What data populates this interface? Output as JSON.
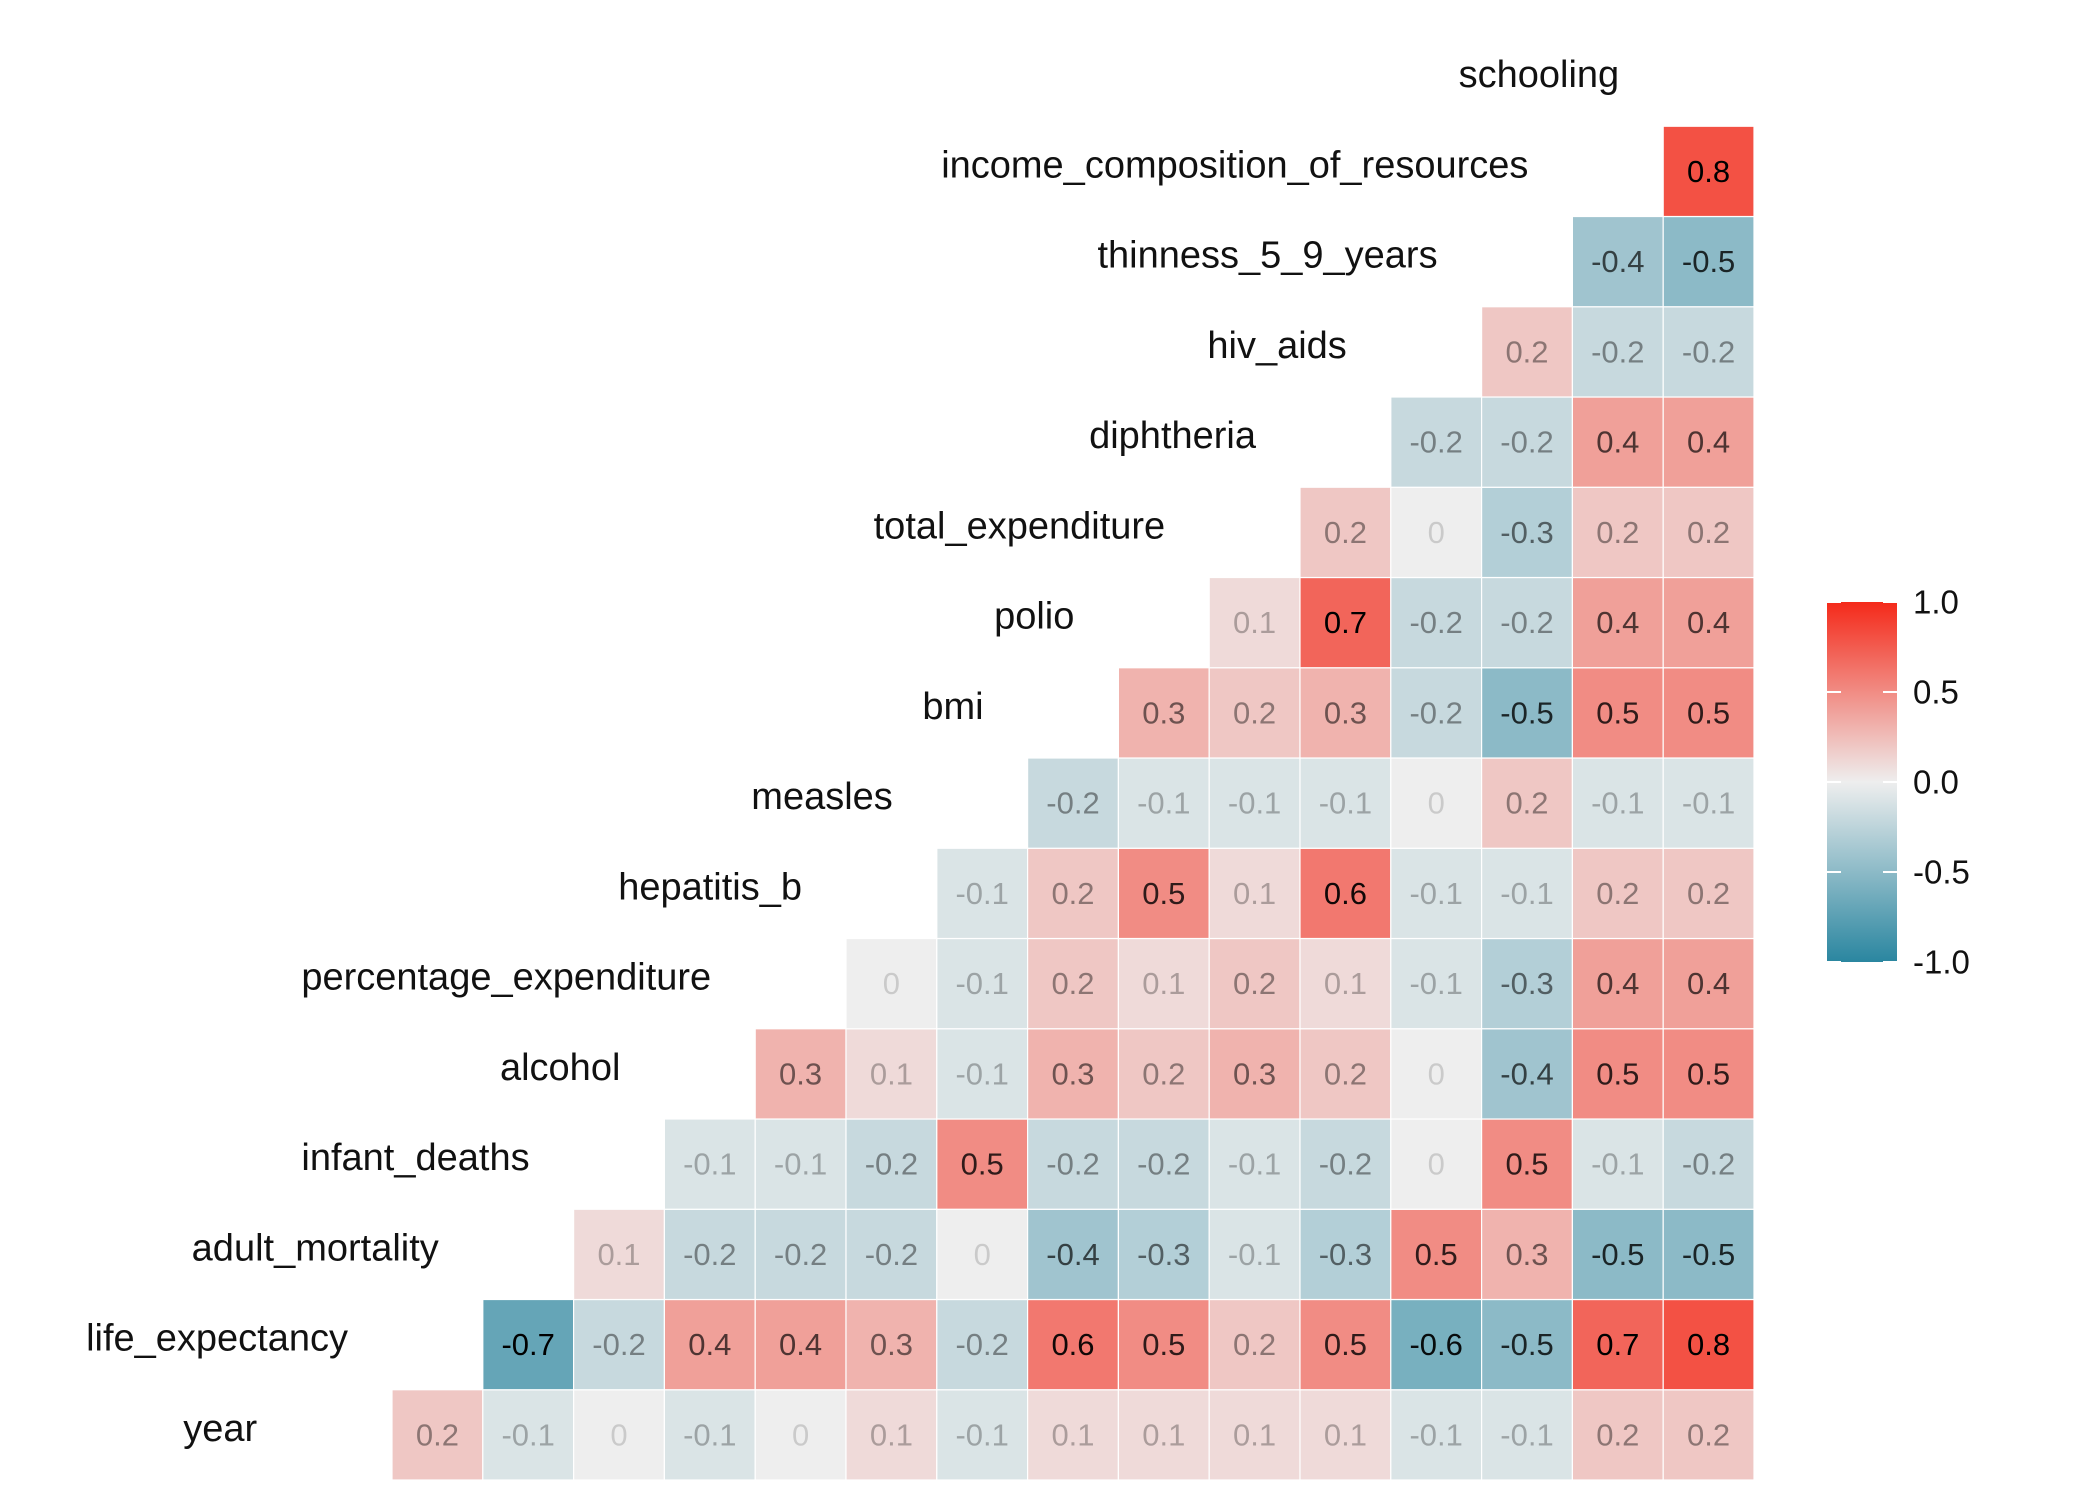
{
  "chart_data": {
    "type": "heatmap",
    "title": "",
    "variables": [
      "year",
      "life_expectancy",
      "adult_mortality",
      "infant_deaths",
      "alcohol",
      "percentage_expenditure",
      "hepatitis_b",
      "measles",
      "bmi",
      "polio",
      "total_expenditure",
      "diphtheria",
      "hiv_aids",
      "thinness_5_9_years",
      "income_composition_of_resources",
      "schooling"
    ],
    "matrix": [
      [
        "0.2",
        "-0.1",
        "0",
        "-0.1",
        "0",
        "0.1",
        "-0.1",
        "0.1",
        "0.1",
        "0.1",
        "0.1",
        "-0.1",
        "-0.1",
        "0.2",
        "0.2"
      ],
      [
        "-0.7",
        "-0.2",
        "0.4",
        "0.4",
        "0.3",
        "-0.2",
        "0.6",
        "0.5",
        "0.2",
        "0.5",
        "-0.6",
        "-0.5",
        "0.7",
        "0.8"
      ],
      [
        "0.1",
        "-0.2",
        "-0.2",
        "-0.2",
        "0",
        "-0.4",
        "-0.3",
        "-0.1",
        "-0.3",
        "0.5",
        "0.3",
        "-0.5",
        "-0.5"
      ],
      [
        "-0.1",
        "-0.1",
        "-0.2",
        "0.5",
        "-0.2",
        "-0.2",
        "-0.1",
        "-0.2",
        "0",
        "0.5",
        "-0.1",
        "-0.2"
      ],
      [
        "0.3",
        "0.1",
        "-0.1",
        "0.3",
        "0.2",
        "0.3",
        "0.2",
        "0",
        "-0.4",
        "0.5",
        "0.5"
      ],
      [
        "0",
        "-0.1",
        "0.2",
        "0.1",
        "0.2",
        "0.1",
        "-0.1",
        "-0.3",
        "0.4",
        "0.4"
      ],
      [
        "-0.1",
        "0.2",
        "0.5",
        "0.1",
        "0.6",
        "-0.1",
        "-0.1",
        "0.2",
        "0.2"
      ],
      [
        "-0.2",
        "-0.1",
        "-0.1",
        "-0.1",
        "0",
        "0.2",
        "-0.1",
        "-0.1"
      ],
      [
        "0.3",
        "0.2",
        "0.3",
        "-0.2",
        "-0.5",
        "0.5",
        "0.5"
      ],
      [
        "0.1",
        "0.7",
        "-0.2",
        "-0.2",
        "0.4",
        "0.4"
      ],
      [
        "0.2",
        "0",
        "-0.3",
        "0.2",
        "0.2"
      ],
      [
        "-0.2",
        "-0.2",
        "0.4",
        "0.4"
      ],
      [
        "0.2",
        "-0.2",
        "-0.2"
      ],
      [
        "-0.4",
        "-0.5"
      ],
      [
        "0.8"
      ]
    ],
    "color_scale": {
      "min": -1.0,
      "mid": 0.0,
      "max": 1.0,
      "low_color": "#2a86a0",
      "mid_color": "#eeeeee",
      "high_color": "#f42a1a"
    },
    "legend": {
      "placement": "right",
      "ticks": [
        "1.0",
        "0.5",
        "0.0",
        "-0.5",
        "-1.0"
      ]
    },
    "grid": false
  }
}
